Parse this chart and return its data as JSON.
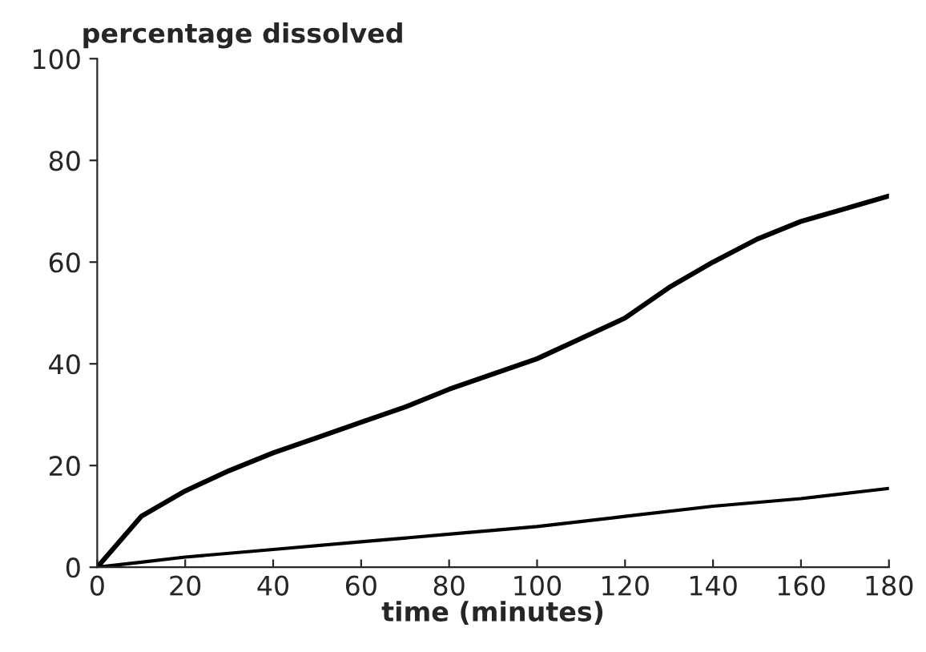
{
  "chart_data": {
    "type": "line",
    "xlabel": "time (minutes)",
    "ylabel": "percentage dissolved",
    "xlim": [
      0,
      180
    ],
    "ylim": [
      0,
      100
    ],
    "xticks": [
      0,
      20,
      40,
      60,
      80,
      100,
      120,
      140,
      160,
      180
    ],
    "yticks": [
      0,
      20,
      40,
      60,
      80,
      100
    ],
    "grid": false,
    "legend": false,
    "marker": "none",
    "line_style": "solid",
    "series": [
      {
        "color": "#000000",
        "x": [
          0,
          10,
          20,
          30,
          40,
          50,
          60,
          70,
          80,
          90,
          100,
          110,
          120,
          130,
          140,
          150,
          160,
          170,
          180
        ],
        "values": [
          0,
          10,
          15,
          19,
          22.5,
          25.5,
          28.5,
          31.5,
          35,
          38,
          41,
          45,
          49,
          55,
          60,
          64.5,
          68,
          70.5,
          73
        ]
      },
      {
        "color": "#000000",
        "x": [
          0,
          10,
          20,
          40,
          60,
          80,
          100,
          120,
          140,
          160,
          180
        ],
        "values": [
          0,
          1,
          2,
          3.5,
          5,
          6.5,
          8,
          10,
          12,
          13.5,
          15.5
        ]
      }
    ]
  }
}
